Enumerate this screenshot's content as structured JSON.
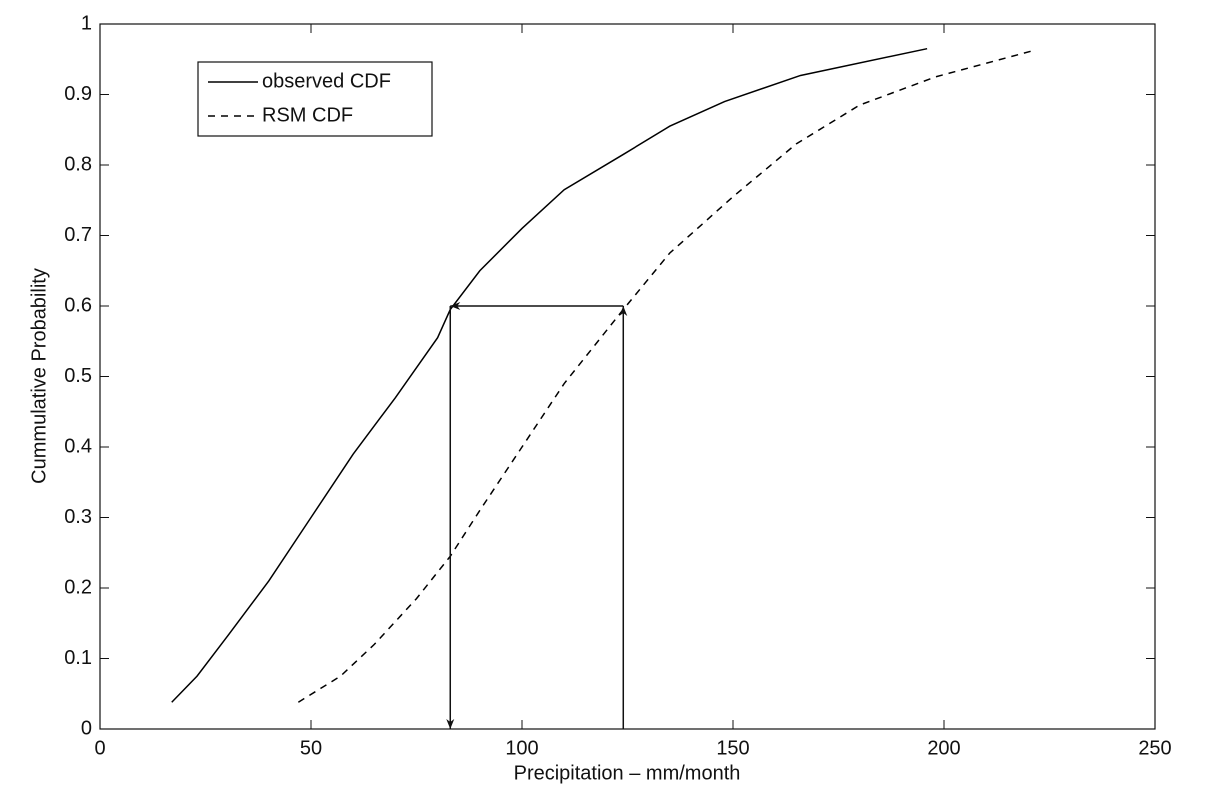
{
  "chart_data": {
    "type": "line",
    "xlabel": "Precipitation – mm/month",
    "ylabel": "Cummulative Probability",
    "xlim": [
      0,
      250
    ],
    "xticks": [
      0,
      50,
      100,
      150,
      200,
      250
    ],
    "ylim": [
      0,
      1
    ],
    "yticks": [
      0,
      0.1,
      0.2,
      0.3,
      0.4,
      0.5,
      0.6,
      0.7,
      0.8,
      0.9,
      1
    ],
    "grid": false,
    "legend": "upper left",
    "series": [
      {
        "name": "observed CDF",
        "color": "#000000",
        "dash": "solid",
        "x": [
          17,
          23,
          30,
          40,
          50,
          60,
          70,
          80,
          83,
          90,
          100,
          110,
          124,
          135,
          148,
          166,
          196
        ],
        "values": [
          0.038,
          0.075,
          0.13,
          0.21,
          0.3,
          0.39,
          0.47,
          0.555,
          0.595,
          0.65,
          0.71,
          0.765,
          0.815,
          0.855,
          0.89,
          0.927,
          0.965
        ]
      },
      {
        "name": "RSM CDF",
        "color": "#000000",
        "dash": "dashed",
        "x": [
          47,
          57,
          65,
          75,
          83,
          90,
          100,
          110,
          124,
          135,
          150,
          165,
          180,
          198,
          221
        ],
        "values": [
          0.038,
          0.075,
          0.12,
          0.185,
          0.245,
          0.31,
          0.4,
          0.49,
          0.595,
          0.675,
          0.755,
          0.83,
          0.885,
          0.925,
          0.962
        ]
      }
    ],
    "arrows": [
      {
        "x": [
          124,
          124
        ],
        "y": [
          0,
          0.6
        ]
      },
      {
        "x": [
          124,
          83
        ],
        "y": [
          0.6,
          0.6
        ]
      },
      {
        "x": [
          83,
          83
        ],
        "y": [
          0.6,
          0
        ]
      }
    ]
  }
}
